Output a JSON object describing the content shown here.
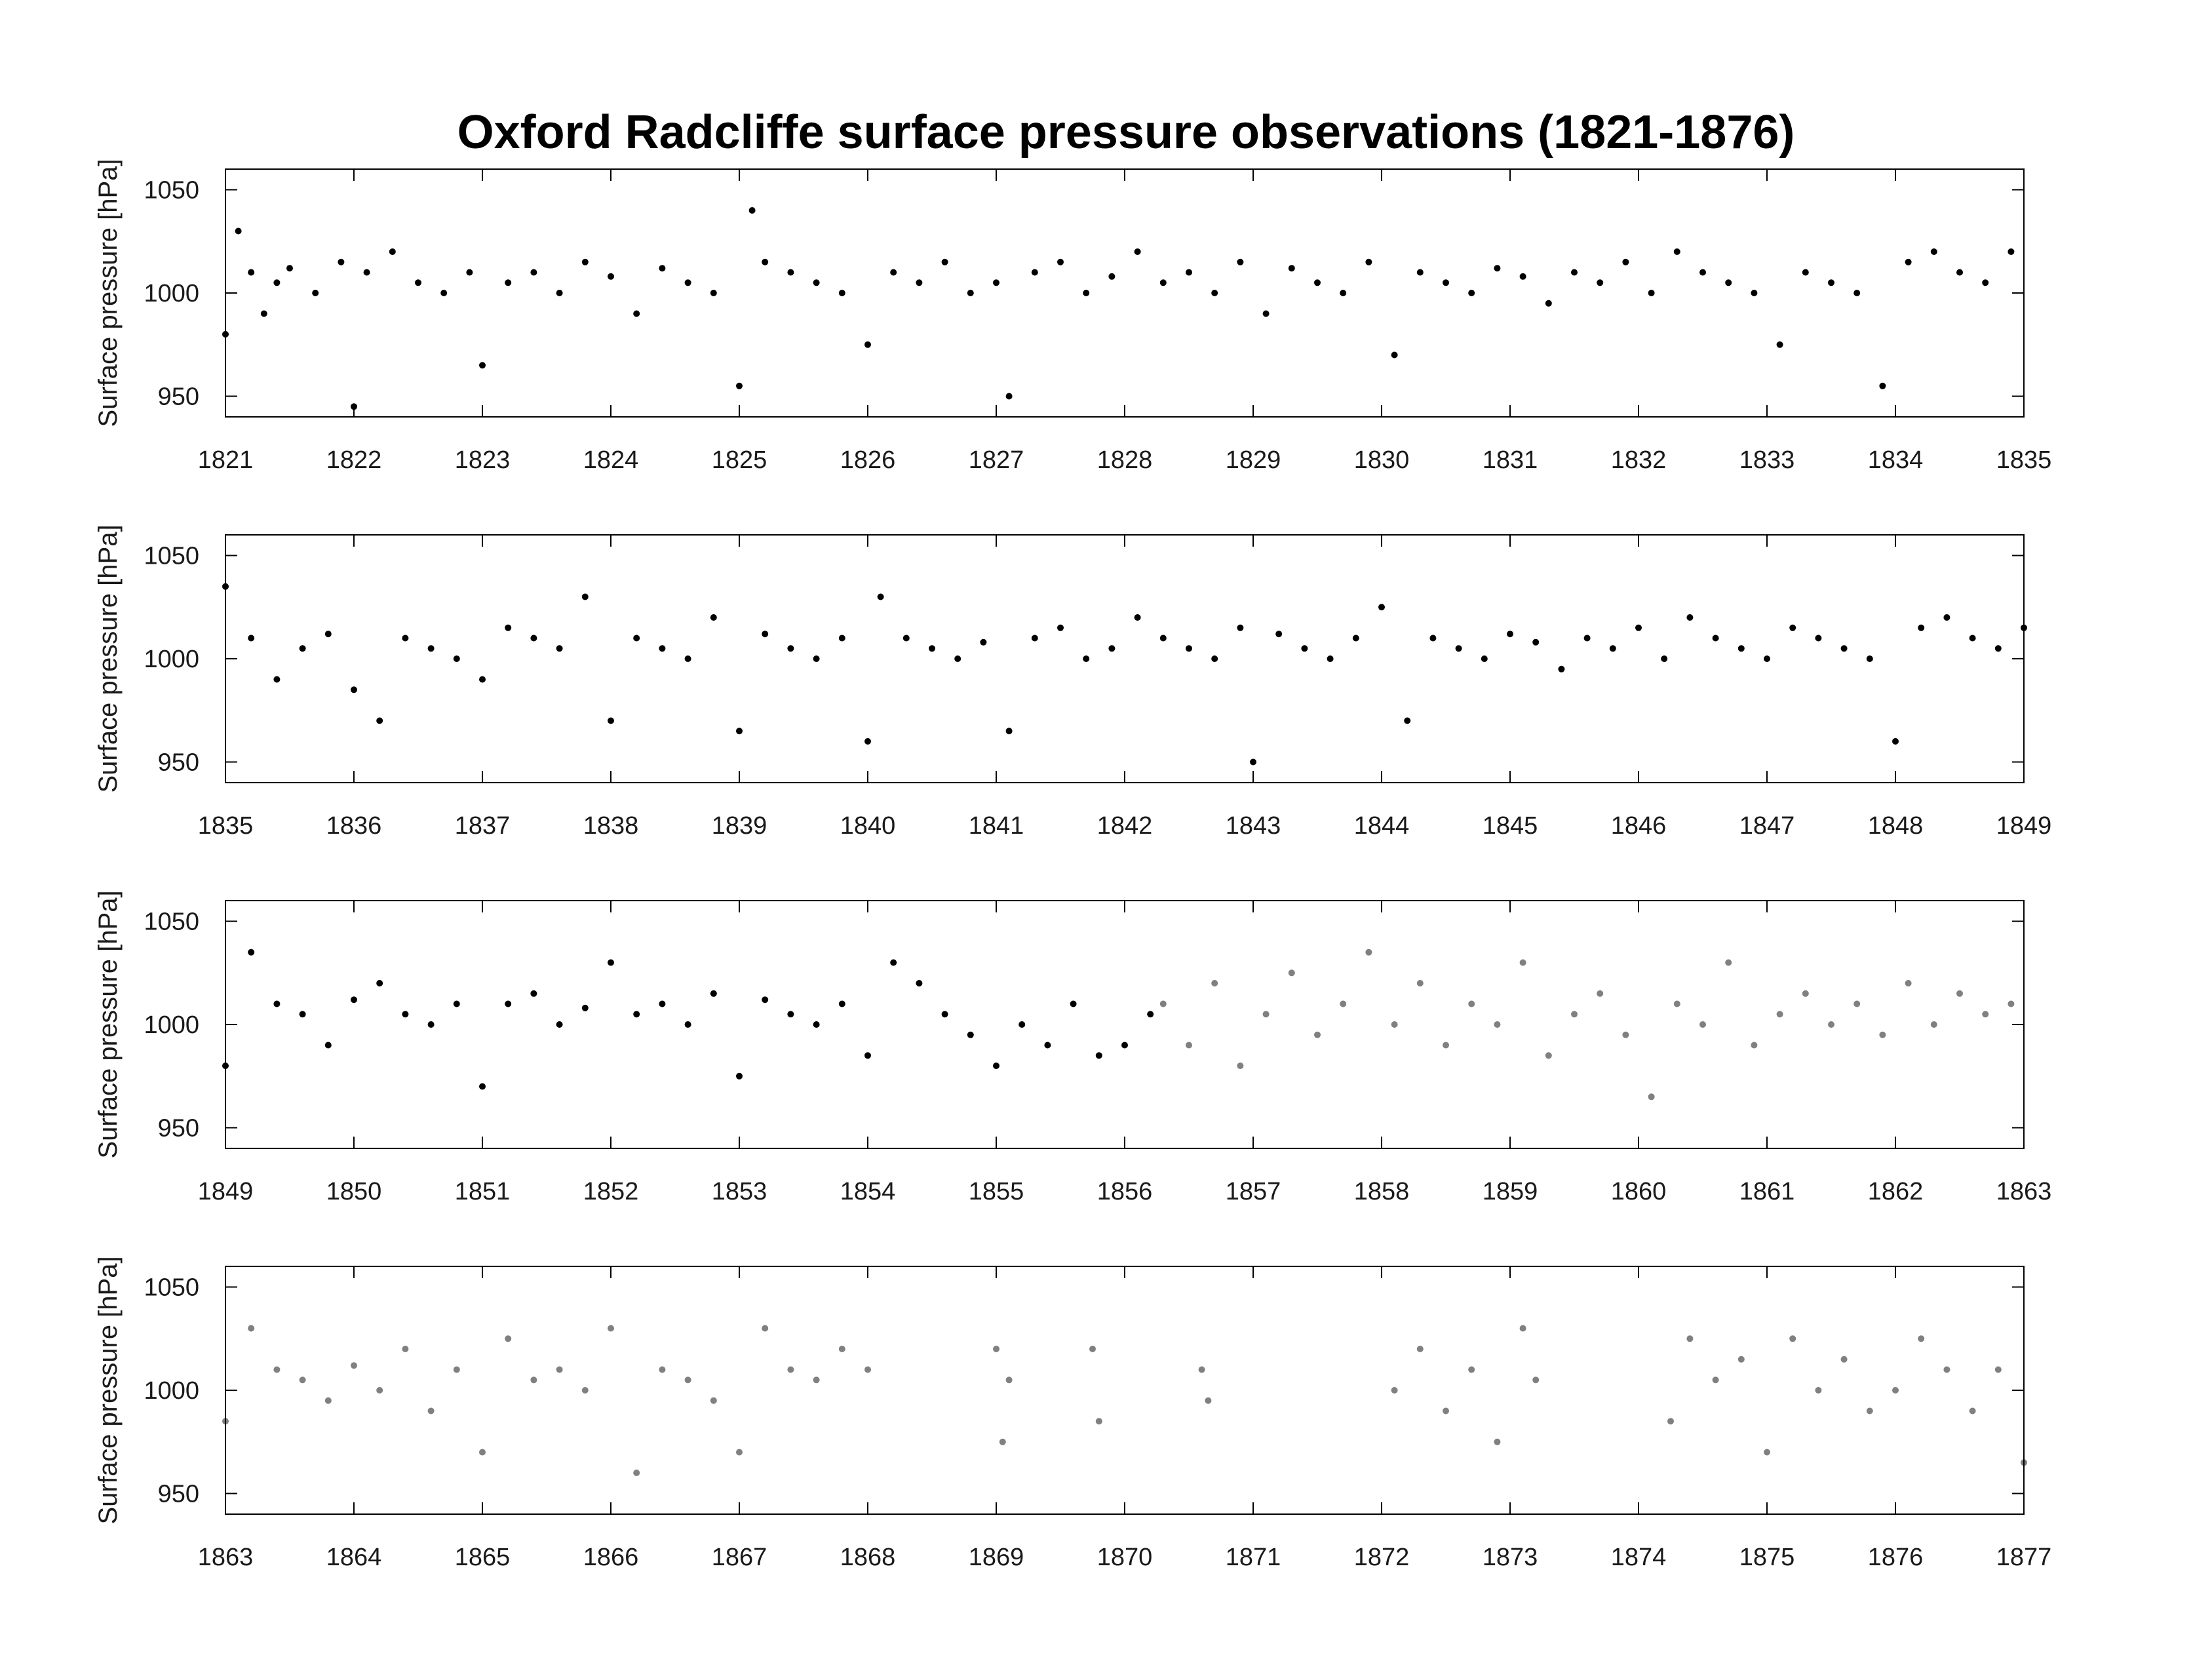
{
  "chart_data": {
    "title": "Oxford Radcliffe surface pressure observations (1821-1876)",
    "type": "scatter",
    "ylabel": "Surface pressure [hPa]",
    "ylim": [
      940,
      1060
    ],
    "yticks": [
      950,
      1000,
      1050
    ],
    "grid": false,
    "colors": {
      "black_series": "#000000",
      "gray_series": "#808080",
      "axes": "#000000"
    },
    "panels": [
      {
        "xlim": [
          1821,
          1835
        ],
        "xticks": [
          "1821",
          "1822",
          "1823",
          "1824",
          "1825",
          "1826",
          "1827",
          "1828",
          "1829",
          "1830",
          "1831",
          "1832",
          "1833",
          "1834",
          "1835"
        ],
        "series": [
          {
            "color": "black",
            "x": [
              1821.0,
              1821.1,
              1821.2,
              1821.3,
              1821.4,
              1821.5,
              1821.7,
              1821.9,
              1822.0,
              1822.1,
              1822.3,
              1822.5,
              1822.7,
              1822.9,
              1823.0,
              1823.2,
              1823.4,
              1823.6,
              1823.8,
              1824.0,
              1824.2,
              1824.4,
              1824.6,
              1824.8,
              1825.0,
              1825.1,
              1825.2,
              1825.4,
              1825.6,
              1825.8,
              1826.0,
              1826.2,
              1826.4,
              1826.6,
              1826.8,
              1827.0,
              1827.1,
              1827.3,
              1827.5,
              1827.7,
              1827.9,
              1828.1,
              1828.3,
              1828.5,
              1828.7,
              1828.9,
              1829.1,
              1829.3,
              1829.5,
              1829.7,
              1829.9,
              1830.1,
              1830.3,
              1830.5,
              1830.7,
              1830.9,
              1831.1,
              1831.3,
              1831.5,
              1831.7,
              1831.9,
              1832.1,
              1832.3,
              1832.5,
              1832.7,
              1832.9,
              1833.1,
              1833.3,
              1833.5,
              1833.7,
              1833.9,
              1834.1,
              1834.3,
              1834.5,
              1834.7,
              1834.9
            ],
            "y": [
              980,
              1030,
              1010,
              990,
              1005,
              1012,
              1000,
              1015,
              945,
              1010,
              1020,
              1005,
              1000,
              1010,
              965,
              1005,
              1010,
              1000,
              1015,
              1008,
              990,
              1012,
              1005,
              1000,
              955,
              1040,
              1015,
              1010,
              1005,
              1000,
              975,
              1010,
              1005,
              1015,
              1000,
              1005,
              950,
              1010,
              1015,
              1000,
              1008,
              1020,
              1005,
              1010,
              1000,
              1015,
              990,
              1012,
              1005,
              1000,
              1015,
              970,
              1010,
              1005,
              1000,
              1012,
              1008,
              995,
              1010,
              1005,
              1015,
              1000,
              1020,
              1010,
              1005,
              1000,
              975,
              1010,
              1005,
              1000,
              955,
              1015,
              1020,
              1010,
              1005,
              1020
            ]
          }
        ]
      },
      {
        "xlim": [
          1835,
          1849
        ],
        "xticks": [
          "1835",
          "1836",
          "1837",
          "1838",
          "1839",
          "1840",
          "1841",
          "1842",
          "1843",
          "1844",
          "1845",
          "1846",
          "1847",
          "1848",
          "1849"
        ],
        "series": [
          {
            "color": "black",
            "x": [
              1835.0,
              1835.2,
              1835.4,
              1835.6,
              1835.8,
              1836.0,
              1836.2,
              1836.4,
              1836.6,
              1836.8,
              1837.0,
              1837.2,
              1837.4,
              1837.6,
              1837.8,
              1838.0,
              1838.2,
              1838.4,
              1838.6,
              1838.8,
              1839.0,
              1839.2,
              1839.4,
              1839.6,
              1839.8,
              1840.0,
              1840.1,
              1840.3,
              1840.5,
              1840.7,
              1840.9,
              1841.1,
              1841.3,
              1841.5,
              1841.7,
              1841.9,
              1842.1,
              1842.3,
              1842.5,
              1842.7,
              1842.9,
              1843.0,
              1843.2,
              1843.4,
              1843.6,
              1843.8,
              1844.0,
              1844.2,
              1844.4,
              1844.6,
              1844.8,
              1845.0,
              1845.2,
              1845.4,
              1845.6,
              1845.8,
              1846.0,
              1846.2,
              1846.4,
              1846.6,
              1846.8,
              1847.0,
              1847.2,
              1847.4,
              1847.6,
              1847.8,
              1848.0,
              1848.2,
              1848.4,
              1848.6,
              1848.8,
              1849.0
            ],
            "y": [
              1035,
              1010,
              990,
              1005,
              1012,
              985,
              970,
              1010,
              1005,
              1000,
              990,
              1015,
              1010,
              1005,
              1030,
              970,
              1010,
              1005,
              1000,
              1020,
              965,
              1012,
              1005,
              1000,
              1010,
              960,
              1030,
              1010,
              1005,
              1000,
              1008,
              965,
              1010,
              1015,
              1000,
              1005,
              1020,
              1010,
              1005,
              1000,
              1015,
              950,
              1012,
              1005,
              1000,
              1010,
              1025,
              970,
              1010,
              1005,
              1000,
              1012,
              1008,
              995,
              1010,
              1005,
              1015,
              1000,
              1020,
              1010,
              1005,
              1000,
              1015,
              1010,
              1005,
              1000,
              960,
              1015,
              1020,
              1010,
              1005,
              1015
            ]
          }
        ]
      },
      {
        "xlim": [
          1849,
          1863
        ],
        "xticks": [
          "1849",
          "1850",
          "1851",
          "1852",
          "1853",
          "1854",
          "1855",
          "1856",
          "1857",
          "1858",
          "1859",
          "1860",
          "1861",
          "1862",
          "1863"
        ],
        "series": [
          {
            "color": "black",
            "x": [
              1849.0,
              1849.2,
              1849.4,
              1849.6,
              1849.8,
              1850.0,
              1850.2,
              1850.4,
              1850.6,
              1850.8,
              1851.0,
              1851.2,
              1851.4,
              1851.6,
              1851.8,
              1852.0,
              1852.2,
              1852.4,
              1852.6,
              1852.8,
              1853.0,
              1853.2,
              1853.4,
              1853.6,
              1853.8,
              1854.0,
              1854.2,
              1854.4,
              1854.6,
              1854.8,
              1855.0,
              1855.2,
              1855.4,
              1855.6,
              1855.8,
              1856.0,
              1856.2
            ],
            "y": [
              980,
              1035,
              1010,
              1005,
              990,
              1012,
              1020,
              1005,
              1000,
              1010,
              970,
              1010,
              1015,
              1000,
              1008,
              1030,
              1005,
              1010,
              1000,
              1015,
              975,
              1012,
              1005,
              1000,
              1010,
              985,
              1030,
              1020,
              1005,
              995,
              980,
              1000,
              990,
              1010,
              985,
              990,
              1005
            ]
          },
          {
            "color": "gray",
            "x": [
              1856.3,
              1856.5,
              1856.7,
              1856.9,
              1857.1,
              1857.3,
              1857.5,
              1857.7,
              1857.9,
              1858.1,
              1858.3,
              1858.5,
              1858.7,
              1858.9,
              1859.1,
              1859.3,
              1859.5,
              1859.7,
              1859.9,
              1860.1,
              1860.3,
              1860.5,
              1860.7,
              1860.9,
              1861.1,
              1861.3,
              1861.5,
              1861.7,
              1861.9,
              1862.1,
              1862.3,
              1862.5,
              1862.7,
              1862.9
            ],
            "y": [
              1010,
              990,
              1020,
              980,
              1005,
              1025,
              995,
              1010,
              1035,
              1000,
              1020,
              990,
              1010,
              1000,
              1030,
              985,
              1005,
              1015,
              995,
              965,
              1010,
              1000,
              1030,
              990,
              1005,
              1015,
              1000,
              1010,
              995,
              1020,
              1000,
              1015,
              1005,
              1010
            ]
          }
        ]
      },
      {
        "xlim": [
          1863,
          1877
        ],
        "xticks": [
          "1863",
          "1864",
          "1865",
          "1866",
          "1867",
          "1868",
          "1869",
          "1870",
          "1871",
          "1872",
          "1873",
          "1874",
          "1875",
          "1876",
          "1877"
        ],
        "series": [
          {
            "color": "gray",
            "x": [
              1863.0,
              1863.2,
              1863.4,
              1863.6,
              1863.8,
              1864.0,
              1864.2,
              1864.4,
              1864.6,
              1864.8,
              1865.0,
              1865.2,
              1865.4,
              1865.6,
              1865.8,
              1866.0,
              1866.2,
              1866.4,
              1866.6,
              1866.8,
              1867.0,
              1867.2,
              1867.4,
              1867.6,
              1867.8,
              1868.0,
              1869.0,
              1869.05,
              1869.1,
              1869.75,
              1869.8,
              1870.6,
              1870.65,
              1872.1,
              1872.3,
              1872.5,
              1872.7,
              1872.9,
              1873.1,
              1873.2,
              1874.25,
              1874.4,
              1874.6,
              1874.8,
              1875.0,
              1875.2,
              1875.4,
              1875.6,
              1875.8,
              1876.0,
              1876.2,
              1876.4,
              1876.6,
              1876.8,
              1877.0
            ],
            "y": [
              985,
              1030,
              1010,
              1005,
              995,
              1012,
              1000,
              1020,
              990,
              1010,
              970,
              1025,
              1005,
              1010,
              1000,
              1030,
              960,
              1010,
              1005,
              995,
              970,
              1030,
              1010,
              1005,
              1020,
              1010,
              1020,
              975,
              1005,
              1020,
              985,
              1010,
              995,
              1000,
              1020,
              990,
              1010,
              975,
              1030,
              1005,
              985,
              1025,
              1005,
              1015,
              970,
              1025,
              1000,
              1015,
              990,
              1000,
              1025,
              1010,
              990,
              1010,
              965
            ]
          }
        ]
      }
    ]
  }
}
